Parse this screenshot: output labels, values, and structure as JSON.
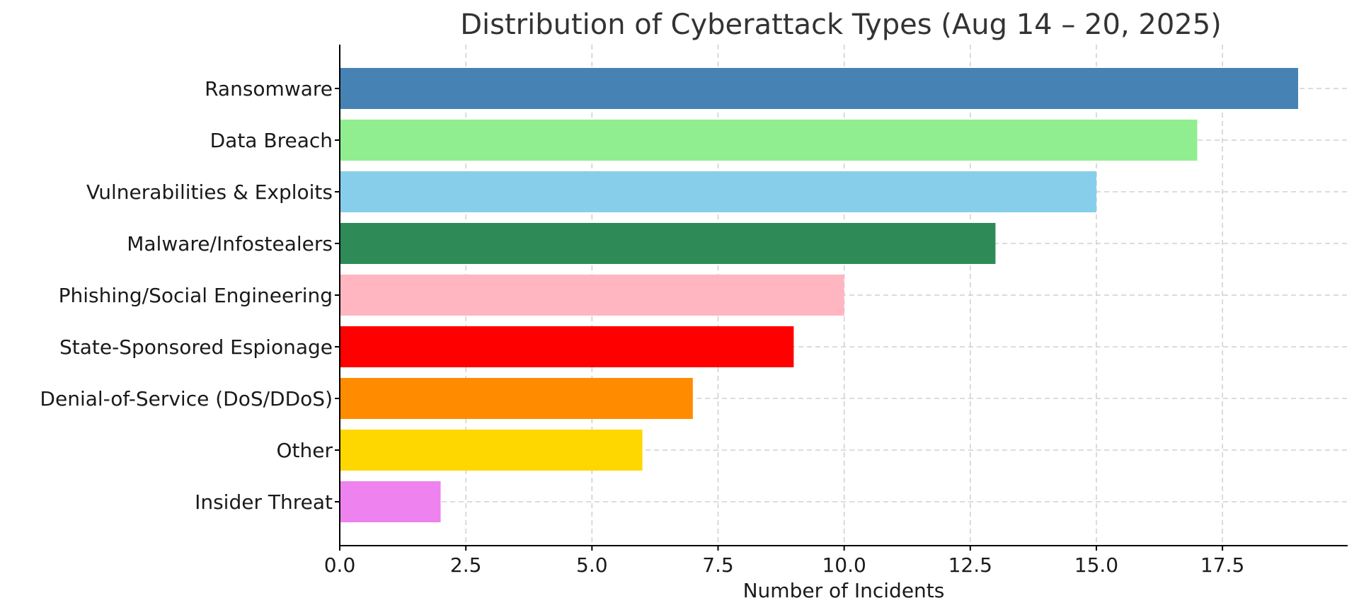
{
  "chart_data": {
    "type": "bar",
    "orientation": "horizontal",
    "title": "Distribution of Cyberattack Types (Aug 14 – 20, 2025)",
    "xlabel": "Number of Incidents",
    "ylabel": "",
    "xlim": [
      0,
      20
    ],
    "xticks": [
      0.0,
      2.5,
      5.0,
      7.5,
      10.0,
      12.5,
      15.0,
      17.5
    ],
    "xtick_labels": [
      "0.0",
      "2.5",
      "5.0",
      "7.5",
      "10.0",
      "12.5",
      "15.0",
      "17.5"
    ],
    "grid": true,
    "categories": [
      "Ransomware",
      "Data Breach",
      "Vulnerabilities & Exploits",
      "Malware/Infostealers",
      "Phishing/Social Engineering",
      "State-Sponsored Espionage",
      "Denial-of-Service (DoS/DDoS)",
      "Other",
      "Insider Threat"
    ],
    "values": [
      19,
      17,
      15,
      13,
      10,
      9,
      7,
      6,
      2
    ],
    "colors": [
      "#4682b4",
      "#90ee90",
      "#87ceeb",
      "#2e8b57",
      "#ffb6c1",
      "#ff0000",
      "#ff8c00",
      "#ffd700",
      "#ee82ee"
    ]
  }
}
